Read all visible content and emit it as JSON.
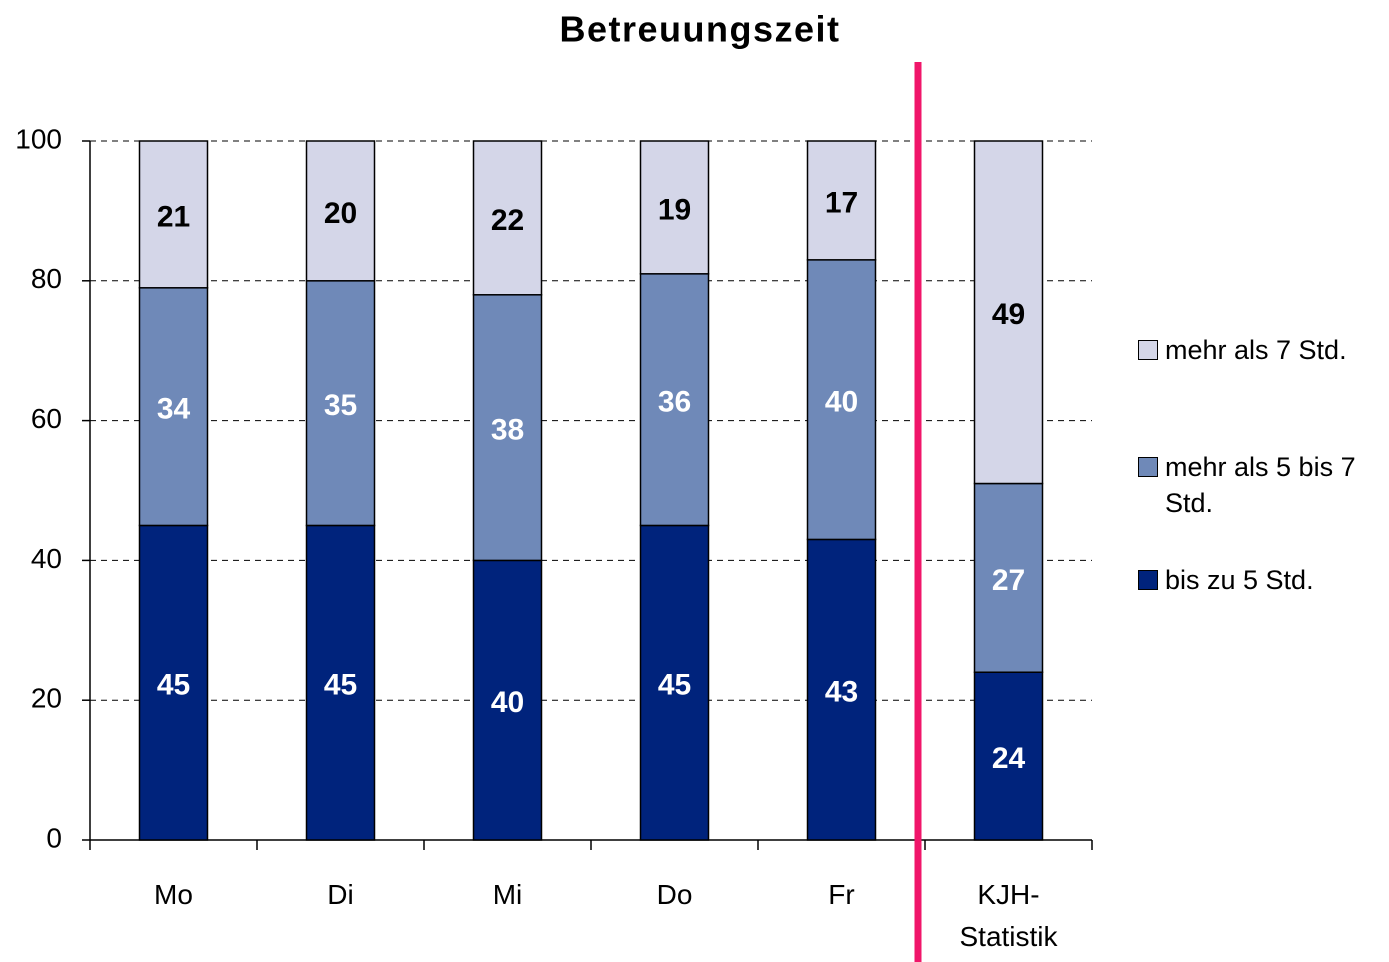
{
  "chart_data": {
    "type": "stacked_bar",
    "title": "Betreuungszeit",
    "categories": [
      "Mo",
      "Di",
      "Mi",
      "Do",
      "Fr",
      "KJH-Statistik"
    ],
    "series": [
      {
        "name": "bis zu 5 Std.",
        "color": "#00237c",
        "label_color": "#ffffff",
        "values": [
          45,
          45,
          40,
          45,
          43,
          24
        ]
      },
      {
        "name": "mehr als 5 bis 7 Std.",
        "color": "#6f89b8",
        "label_color": "#ffffff",
        "values": [
          34,
          35,
          38,
          36,
          40,
          27
        ]
      },
      {
        "name": "mehr als 7 Std.",
        "color": "#d4d6e8",
        "label_color": "#000000",
        "values": [
          21,
          20,
          22,
          19,
          17,
          49
        ]
      }
    ],
    "ylim": [
      0,
      100
    ],
    "yticks": [
      0,
      20,
      40,
      60,
      80,
      100
    ],
    "grid": true,
    "legend": "right"
  }
}
